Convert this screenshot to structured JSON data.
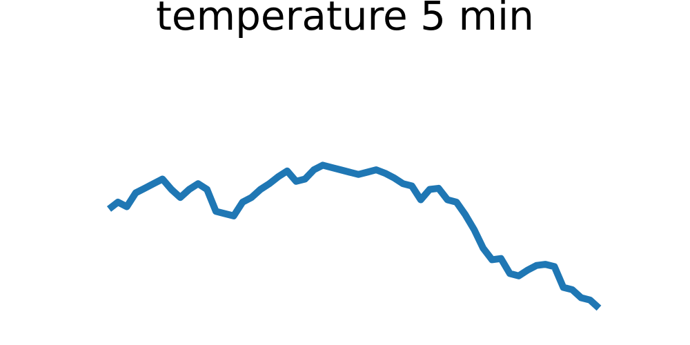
{
  "chart_data": {
    "type": "line",
    "title": "temperature 5 min",
    "xlabel": "",
    "ylabel": "",
    "axes_visible": false,
    "grid": false,
    "legend": "none",
    "x": [
      0,
      1,
      2,
      3,
      4,
      5,
      6,
      7,
      8,
      9,
      10,
      11,
      12,
      13,
      14,
      15,
      16,
      17,
      18,
      19,
      20,
      21,
      22,
      23,
      24,
      25,
      26,
      27,
      28,
      29,
      30,
      31,
      32,
      33,
      34,
      35,
      36,
      37,
      38,
      39,
      40,
      41,
      42,
      43,
      44,
      45,
      46,
      47,
      48,
      49,
      50,
      51,
      52,
      53,
      54,
      55
    ],
    "series": [
      {
        "color": "#1f77b4",
        "values": [
          63.5,
          66.5,
          64.5,
          70.5,
          72.5,
          74.5,
          76.5,
          72.0,
          68.5,
          72.0,
          74.5,
          72.0,
          62.5,
          61.5,
          60.5,
          66.5,
          68.5,
          72.0,
          74.5,
          77.5,
          80.0,
          75.5,
          76.5,
          80.5,
          82.5,
          81.5,
          80.5,
          79.5,
          78.5,
          79.5,
          80.5,
          79.0,
          77.0,
          74.5,
          73.5,
          67.5,
          72.0,
          72.5,
          67.5,
          66.5,
          61.0,
          54.5,
          46.5,
          41.5,
          42.0,
          35.5,
          34.5,
          37.0,
          39.0,
          39.5,
          38.5,
          29.5,
          28.5,
          25.0,
          24.0,
          20.5
        ]
      }
    ],
    "ylim": [
      0,
      100
    ]
  }
}
